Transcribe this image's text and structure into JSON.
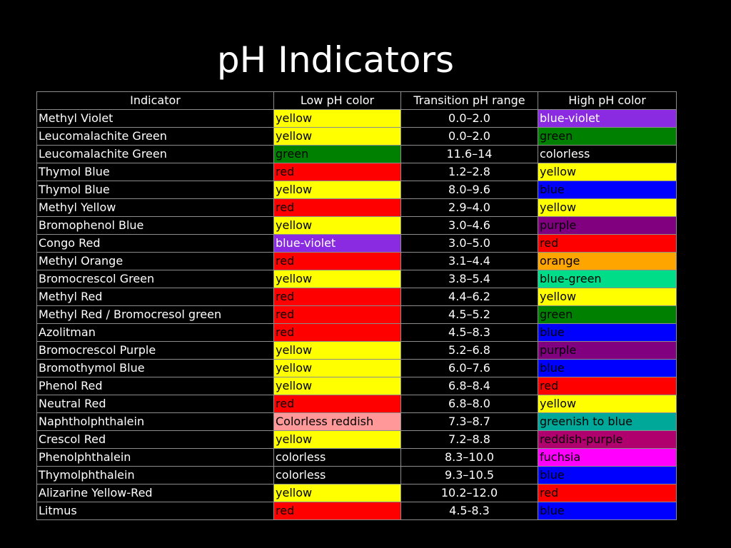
{
  "slide": {
    "title": "pH Indicators"
  },
  "table": {
    "headers": [
      "Indicator",
      "Low pH color",
      "Transition pH range",
      "High pH color"
    ],
    "rows": [
      {
        "indicator": "Methyl Violet",
        "low": {
          "text": "yellow",
          "bg": "#ffff00",
          "fg": "#000000"
        },
        "range": "0.0–2.0",
        "high": {
          "text": "blue-violet",
          "bg": "#8a2be2",
          "fg": "#ffffff"
        }
      },
      {
        "indicator": "Leucomalachite Green",
        "low": {
          "text": "yellow",
          "bg": "#ffff00",
          "fg": "#000000"
        },
        "range": "0.0–2.0",
        "high": {
          "text": "green",
          "bg": "#008000",
          "fg": "#000000"
        }
      },
      {
        "indicator": "Leucomalachite Green",
        "low": {
          "text": "green",
          "bg": "#008000",
          "fg": "#000000"
        },
        "range": "11.6–14",
        "high": {
          "text": "colorless",
          "bg": "#000000",
          "fg": "#ffffff"
        }
      },
      {
        "indicator": "Thymol Blue",
        "low": {
          "text": "red",
          "bg": "#ff0000",
          "fg": "#000000"
        },
        "range": "1.2–2.8",
        "high": {
          "text": "yellow",
          "bg": "#ffff00",
          "fg": "#000000"
        }
      },
      {
        "indicator": "Thymol Blue",
        "low": {
          "text": "yellow",
          "bg": "#ffff00",
          "fg": "#000000"
        },
        "range": "8.0–9.6",
        "high": {
          "text": "blue",
          "bg": "#0000ff",
          "fg": "#000000"
        }
      },
      {
        "indicator": "Methyl Yellow",
        "low": {
          "text": "red",
          "bg": "#ff0000",
          "fg": "#000000"
        },
        "range": "2.9–4.0",
        "high": {
          "text": "yellow",
          "bg": "#ffff00",
          "fg": "#000000"
        }
      },
      {
        "indicator": "Bromophenol Blue",
        "low": {
          "text": "yellow",
          "bg": "#ffff00",
          "fg": "#000000"
        },
        "range": "3.0–4.6",
        "high": {
          "text": "purple",
          "bg": "#800080",
          "fg": "#000000"
        }
      },
      {
        "indicator": "Congo Red",
        "low": {
          "text": "blue-violet",
          "bg": "#8a2be2",
          "fg": "#ffffff"
        },
        "range": "3.0–5.0",
        "high": {
          "text": "red",
          "bg": "#ff0000",
          "fg": "#000000"
        }
      },
      {
        "indicator": "Methyl Orange",
        "low": {
          "text": "red",
          "bg": "#ff0000",
          "fg": "#000000"
        },
        "range": "3.1–4.4",
        "high": {
          "text": "orange",
          "bg": "#ffa500",
          "fg": "#000000"
        }
      },
      {
        "indicator": "Bromocrescol Green",
        "low": {
          "text": "yellow",
          "bg": "#ffff00",
          "fg": "#000000"
        },
        "range": "3.8–5.4",
        "high": {
          "text": "blue-green",
          "bg": "#00dd88",
          "fg": "#000000"
        }
      },
      {
        "indicator": "Methyl Red",
        "low": {
          "text": "red",
          "bg": "#ff0000",
          "fg": "#000000"
        },
        "range": "4.4–6.2",
        "high": {
          "text": "yellow",
          "bg": "#ffff00",
          "fg": "#000000"
        }
      },
      {
        "indicator": "Methyl Red / Bromocresol green",
        "low": {
          "text": "red",
          "bg": "#ff0000",
          "fg": "#000000"
        },
        "range": "4.5–5.2",
        "high": {
          "text": "green",
          "bg": "#008000",
          "fg": "#000000"
        }
      },
      {
        "indicator": "Azolitman",
        "low": {
          "text": "red",
          "bg": "#ff0000",
          "fg": "#000000"
        },
        "range": "4.5–8.3",
        "high": {
          "text": "blue",
          "bg": "#0000ff",
          "fg": "#000000"
        }
      },
      {
        "indicator": "Bromocrescol Purple",
        "low": {
          "text": "yellow",
          "bg": "#ffff00",
          "fg": "#000000"
        },
        "range": "5.2–6.8",
        "high": {
          "text": "purple",
          "bg": "#800080",
          "fg": "#000000"
        }
      },
      {
        "indicator": "Bromothymol Blue",
        "low": {
          "text": "yellow",
          "bg": "#ffff00",
          "fg": "#000000"
        },
        "range": "6.0–7.6",
        "high": {
          "text": "blue",
          "bg": "#0000ff",
          "fg": "#000000"
        }
      },
      {
        "indicator": "Phenol Red",
        "low": {
          "text": "yellow",
          "bg": "#ffff00",
          "fg": "#000000"
        },
        "range": "6.8–8.4",
        "high": {
          "text": "red",
          "bg": "#ff0000",
          "fg": "#000000"
        }
      },
      {
        "indicator": "Neutral Red",
        "low": {
          "text": "red",
          "bg": "#ff0000",
          "fg": "#000000"
        },
        "range": "6.8–8.0",
        "high": {
          "text": "yellow",
          "bg": "#ffff00",
          "fg": "#000000"
        }
      },
      {
        "indicator": "Naphtholphthalein",
        "low": {
          "text": "Colorless reddish",
          "bg": "#ff9999",
          "fg": "#000000"
        },
        "range": "7.3–8.7",
        "high": {
          "text": "greenish to blue",
          "bg": "#00a89a",
          "fg": "#000000"
        }
      },
      {
        "indicator": "Crescol Red",
        "low": {
          "text": "yellow",
          "bg": "#ffff00",
          "fg": "#000000"
        },
        "range": "7.2–8.8",
        "high": {
          "text": "reddish-purple",
          "bg": "#b0006e",
          "fg": "#000000"
        }
      },
      {
        "indicator": "Phenolphthalein",
        "low": {
          "text": "colorless",
          "bg": "#000000",
          "fg": "#ffffff"
        },
        "range": "8.3–10.0",
        "high": {
          "text": "fuchsia",
          "bg": "#ff00ff",
          "fg": "#000000"
        }
      },
      {
        "indicator": "Thymolphthalein",
        "low": {
          "text": "colorless",
          "bg": "#000000",
          "fg": "#ffffff"
        },
        "range": "9.3–10.5",
        "high": {
          "text": "blue",
          "bg": "#0000ff",
          "fg": "#000000"
        }
      },
      {
        "indicator": "Alizarine Yellow-Red",
        "low": {
          "text": "yellow",
          "bg": "#ffff00",
          "fg": "#000000"
        },
        "range": "10.2–12.0",
        "high": {
          "text": "red",
          "bg": "#ff0000",
          "fg": "#000000"
        }
      },
      {
        "indicator": "Litmus",
        "low": {
          "text": "red",
          "bg": "#ff0000",
          "fg": "#000000"
        },
        "range": "4.5-8.3",
        "high": {
          "text": "blue",
          "bg": "#0000ff",
          "fg": "#000000"
        }
      }
    ]
  }
}
